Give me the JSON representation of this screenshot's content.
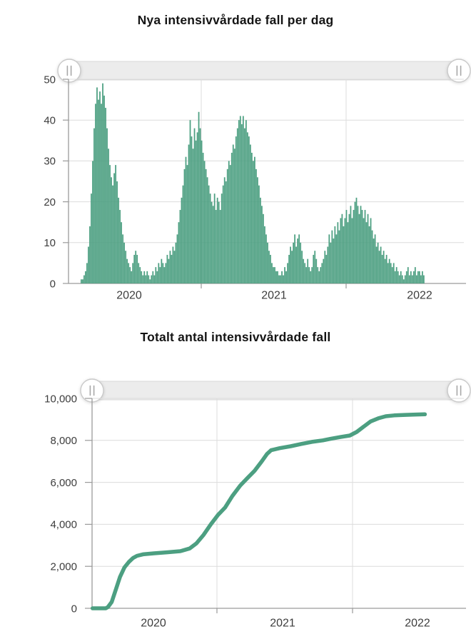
{
  "colors": {
    "series": "#4c9f81",
    "grid": "#dcdcdc",
    "axis": "#9a9a9a",
    "tick_text": "#3d3d3d",
    "title_text": "#141414",
    "slider_track_fill": "#ececec",
    "slider_track_border": "#d9d9d9",
    "slider_handle_fill": "#ffffff",
    "slider_handle_border": "#c9c9c9",
    "slider_handle_glyph": "#a8a8a8"
  },
  "chart_data": [
    {
      "type": "bar",
      "title": "Nya intensivvårdade fall per dag",
      "ylim": [
        0,
        50
      ],
      "y_ticks": [
        0,
        10,
        20,
        30,
        40,
        50
      ],
      "y_tick_labels": [
        "0",
        "10",
        "20",
        "30",
        "40",
        "50"
      ],
      "x_tick_labels": [
        "2020",
        "2021",
        "2022"
      ],
      "x_start": "2020-03-01",
      "x_end": "2022-07-15",
      "note": "Daily new intensive-care cases, dense daily bars compressed to 240 bins",
      "grid": "on",
      "legend": "none",
      "range_slider": {
        "present": true,
        "handle_glyph": "||"
      },
      "values": [
        1,
        1,
        2,
        3,
        5,
        9,
        14,
        22,
        30,
        38,
        44,
        48,
        45,
        47,
        44,
        49,
        46,
        43,
        38,
        33,
        29,
        26,
        24,
        27,
        29,
        25,
        21,
        18,
        15,
        12,
        10,
        8,
        6,
        5,
        4,
        3,
        5,
        7,
        8,
        7,
        5,
        4,
        3,
        2,
        3,
        2,
        3,
        2,
        1,
        2,
        3,
        2,
        4,
        3,
        5,
        4,
        6,
        5,
        4,
        5,
        7,
        6,
        8,
        7,
        9,
        8,
        10,
        12,
        15,
        18,
        21,
        24,
        28,
        31,
        29,
        34,
        40,
        36,
        33,
        38,
        35,
        37,
        42,
        38,
        35,
        32,
        30,
        28,
        26,
        24,
        22,
        20,
        19,
        22,
        18,
        21,
        20,
        18,
        22,
        24,
        26,
        25,
        28,
        30,
        29,
        32,
        34,
        33,
        36,
        38,
        40,
        41,
        39,
        41,
        38,
        40,
        37,
        36,
        34,
        32,
        30,
        31,
        28,
        26,
        24,
        21,
        19,
        17,
        14,
        12,
        10,
        8,
        7,
        5,
        4,
        4,
        3,
        3,
        2,
        2,
        3,
        2,
        4,
        3,
        5,
        7,
        9,
        8,
        10,
        12,
        9,
        11,
        12,
        10,
        8,
        6,
        5,
        4,
        6,
        4,
        3,
        4,
        7,
        8,
        6,
        4,
        3,
        4,
        5,
        6,
        8,
        7,
        9,
        12,
        10,
        13,
        11,
        14,
        12,
        15,
        13,
        16,
        17,
        14,
        16,
        18,
        15,
        17,
        19,
        16,
        18,
        20,
        21,
        19,
        17,
        19,
        18,
        16,
        18,
        15,
        17,
        14,
        16,
        13,
        11,
        12,
        9,
        10,
        8,
        9,
        7,
        8,
        6,
        7,
        5,
        6,
        5,
        4,
        5,
        3,
        4,
        3,
        2,
        3,
        2,
        1,
        2,
        3,
        4,
        2,
        3,
        2,
        3,
        4,
        2,
        3,
        3,
        2,
        3,
        2
      ]
    },
    {
      "type": "line",
      "title": "Totalt antal intensivvårdade fall",
      "ylim": [
        0,
        10000
      ],
      "y_ticks": [
        0,
        2000,
        4000,
        6000,
        8000,
        10000
      ],
      "y_tick_labels": [
        "0",
        "2,000",
        "4,000",
        "6,000",
        "8,000",
        "10,000"
      ],
      "x_tick_labels": [
        "2020",
        "2021",
        "2022"
      ],
      "grid": "on",
      "legend": "none",
      "range_slider": {
        "present": true,
        "handle_glyph": "||"
      },
      "points": [
        {
          "date": "2020-02-03",
          "value": 0
        },
        {
          "date": "2020-03-08",
          "value": 0
        },
        {
          "date": "2020-03-14",
          "value": 60
        },
        {
          "date": "2020-03-24",
          "value": 300
        },
        {
          "date": "2020-04-05",
          "value": 900
        },
        {
          "date": "2020-04-16",
          "value": 1500
        },
        {
          "date": "2020-04-28",
          "value": 1950
        },
        {
          "date": "2020-05-09",
          "value": 2200
        },
        {
          "date": "2020-05-21",
          "value": 2400
        },
        {
          "date": "2020-06-01",
          "value": 2500
        },
        {
          "date": "2020-06-17",
          "value": 2570
        },
        {
          "date": "2020-07-16",
          "value": 2620
        },
        {
          "date": "2020-08-23",
          "value": 2670
        },
        {
          "date": "2020-09-26",
          "value": 2720
        },
        {
          "date": "2020-10-21",
          "value": 2850
        },
        {
          "date": "2020-11-09",
          "value": 3100
        },
        {
          "date": "2020-11-28",
          "value": 3500
        },
        {
          "date": "2020-12-17",
          "value": 4000
        },
        {
          "date": "2021-01-06",
          "value": 4450
        },
        {
          "date": "2021-01-25",
          "value": 4800
        },
        {
          "date": "2021-02-14",
          "value": 5350
        },
        {
          "date": "2021-03-05",
          "value": 5850
        },
        {
          "date": "2021-03-24",
          "value": 6200
        },
        {
          "date": "2021-04-13",
          "value": 6550
        },
        {
          "date": "2021-05-02",
          "value": 7000
        },
        {
          "date": "2021-05-16",
          "value": 7350
        },
        {
          "date": "2021-05-27",
          "value": 7530
        },
        {
          "date": "2021-06-20",
          "value": 7630
        },
        {
          "date": "2021-07-19",
          "value": 7720
        },
        {
          "date": "2021-08-17",
          "value": 7830
        },
        {
          "date": "2021-09-15",
          "value": 7930
        },
        {
          "date": "2021-10-14",
          "value": 8000
        },
        {
          "date": "2021-11-06",
          "value": 8080
        },
        {
          "date": "2021-12-01",
          "value": 8160
        },
        {
          "date": "2021-12-26",
          "value": 8230
        },
        {
          "date": "2022-01-14",
          "value": 8400
        },
        {
          "date": "2022-02-02",
          "value": 8650
        },
        {
          "date": "2022-02-21",
          "value": 8900
        },
        {
          "date": "2022-03-13",
          "value": 9060
        },
        {
          "date": "2022-04-01",
          "value": 9150
        },
        {
          "date": "2022-04-24",
          "value": 9190
        },
        {
          "date": "2022-05-23",
          "value": 9215
        },
        {
          "date": "2022-06-21",
          "value": 9230
        },
        {
          "date": "2022-07-15",
          "value": 9240
        }
      ]
    }
  ]
}
